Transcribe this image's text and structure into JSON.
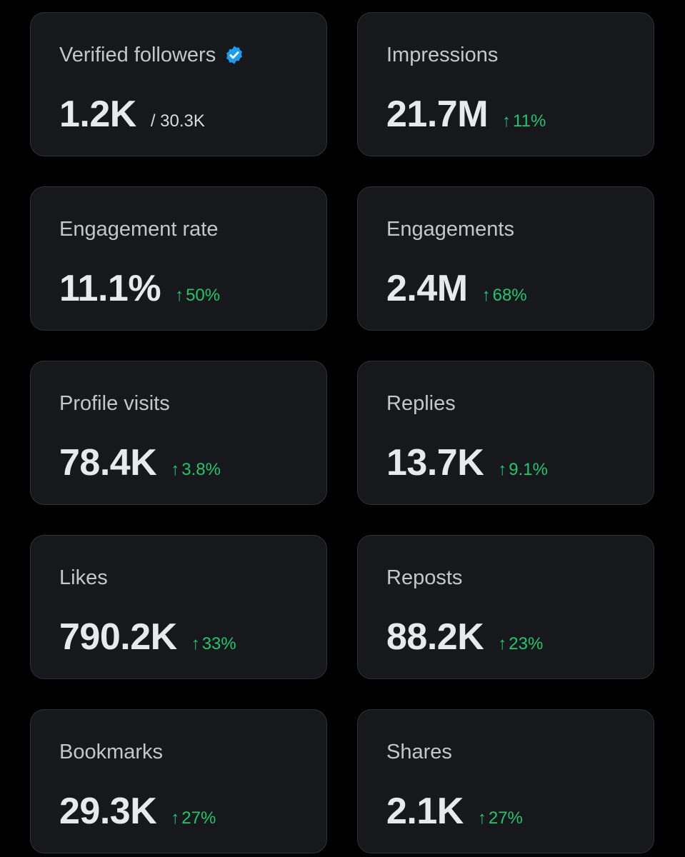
{
  "colors": {
    "background": "#000000",
    "card": "#16181c",
    "card_border": "#2f3336",
    "label": "#c4c7ca",
    "value": "#e7e9ea",
    "positive_change": "#22c56e",
    "verified_badge": "#1d9bf0"
  },
  "icons": {
    "verified": "verified-badge-icon",
    "arrow": "arrow-up-icon"
  },
  "arrow_glyph": "↑",
  "cards": [
    {
      "label": "Verified followers",
      "value": "1.2K",
      "sub": "/ 30.3K"
    },
    {
      "label": "Impressions",
      "value": "21.7M",
      "change": "11%"
    },
    {
      "label": "Engagement rate",
      "value": "11.1%",
      "change": "50%"
    },
    {
      "label": "Engagements",
      "value": "2.4M",
      "change": "68%"
    },
    {
      "label": "Profile visits",
      "value": "78.4K",
      "change": "3.8%"
    },
    {
      "label": "Replies",
      "value": "13.7K",
      "change": "9.1%"
    },
    {
      "label": "Likes",
      "value": "790.2K",
      "change": "33%"
    },
    {
      "label": "Reposts",
      "value": "88.2K",
      "change": "23%"
    },
    {
      "label": "Bookmarks",
      "value": "29.3K",
      "change": "27%"
    },
    {
      "label": "Shares",
      "value": "2.1K",
      "change": "27%"
    }
  ]
}
